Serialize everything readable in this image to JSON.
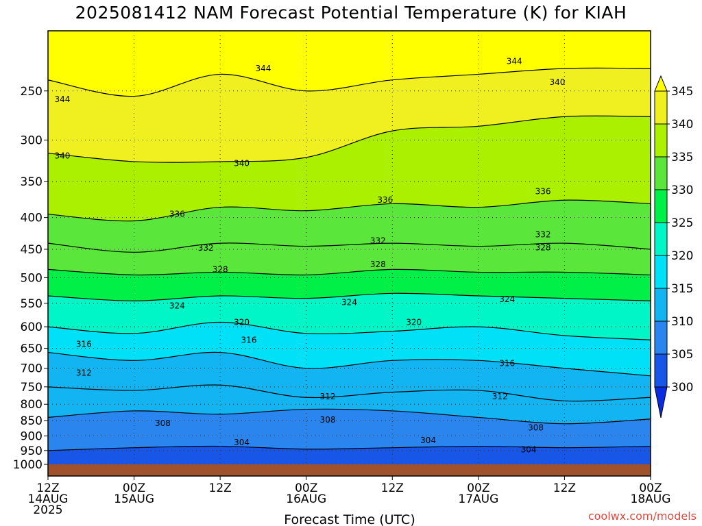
{
  "chart_data": {
    "type": "heatmap",
    "title": "2025081412 NAM Forecast Potential Temperature (K) for KIAH",
    "xlabel": "Forecast Time (UTC)",
    "ylabel": "",
    "credit": "coolwx.com/models",
    "y_scale": "log",
    "y_range": [
      1000,
      200
    ],
    "y_ticks": [
      250,
      300,
      350,
      400,
      450,
      500,
      550,
      600,
      650,
      700,
      750,
      800,
      850,
      900,
      950,
      1000
    ],
    "x_range_hours": [
      0,
      84
    ],
    "x_ticks": [
      {
        "hour": 0,
        "line1": "12Z",
        "line2": "14AUG",
        "line3": "2025"
      },
      {
        "hour": 12,
        "line1": "00Z",
        "line2": "15AUG",
        "line3": ""
      },
      {
        "hour": 24,
        "line1": "12Z",
        "line2": "",
        "line3": ""
      },
      {
        "hour": 36,
        "line1": "00Z",
        "line2": "16AUG",
        "line3": ""
      },
      {
        "hour": 48,
        "line1": "12Z",
        "line2": "",
        "line3": ""
      },
      {
        "hour": 60,
        "line1": "00Z",
        "line2": "17AUG",
        "line3": ""
      },
      {
        "hour": 72,
        "line1": "12Z",
        "line2": "",
        "line3": ""
      },
      {
        "hour": 84,
        "line1": "00Z",
        "line2": "18AUG",
        "line3": ""
      }
    ],
    "colorbar": {
      "levels": [
        300,
        305,
        310,
        315,
        320,
        325,
        330,
        335,
        340,
        345
      ],
      "colors": [
        "#0a2ce0",
        "#1856e8",
        "#2a86ee",
        "#12b4f2",
        "#00e0f6",
        "#00f6c6",
        "#00f048",
        "#5ae63a",
        "#aaf000",
        "#f0f020",
        "#ffff00"
      ]
    },
    "grid": true,
    "hours": [
      0,
      12,
      24,
      36,
      48,
      60,
      72,
      84
    ],
    "isentropes": [
      {
        "theta": 304,
        "p": [
          950,
          940,
          935,
          945,
          940,
          935,
          940,
          935
        ]
      },
      {
        "theta": 308,
        "p": [
          840,
          820,
          830,
          815,
          820,
          840,
          860,
          845
        ]
      },
      {
        "theta": 312,
        "p": [
          750,
          760,
          745,
          780,
          765,
          760,
          790,
          780
        ]
      },
      {
        "theta": 316,
        "p": [
          660,
          680,
          660,
          700,
          680,
          680,
          700,
          720
        ]
      },
      {
        "theta": 320,
        "p": [
          600,
          615,
          590,
          615,
          610,
          600,
          620,
          630
        ]
      },
      {
        "theta": 324,
        "p": [
          535,
          545,
          535,
          540,
          530,
          535,
          540,
          545
        ]
      },
      {
        "theta": 328,
        "p": [
          485,
          495,
          490,
          495,
          485,
          490,
          490,
          495
        ]
      },
      {
        "theta": 332,
        "p": [
          440,
          455,
          440,
          445,
          440,
          445,
          440,
          450
        ]
      },
      {
        "theta": 336,
        "p": [
          395,
          405,
          385,
          390,
          380,
          385,
          375,
          380
        ]
      },
      {
        "theta": 340,
        "p": [
          315,
          325,
          325,
          320,
          290,
          285,
          275,
          275
        ]
      },
      {
        "theta": 344,
        "p": [
          240,
          255,
          235,
          250,
          240,
          235,
          230,
          230
        ]
      }
    ],
    "contour_labels": [
      {
        "text": "344",
        "hour": 2,
        "p": 258
      },
      {
        "text": "344",
        "hour": 30,
        "p": 230
      },
      {
        "text": "344",
        "hour": 65,
        "p": 224
      },
      {
        "text": "340",
        "hour": 2,
        "p": 318
      },
      {
        "text": "340",
        "hour": 27,
        "p": 327
      },
      {
        "text": "340",
        "hour": 71,
        "p": 242
      },
      {
        "text": "336",
        "hour": 18,
        "p": 395
      },
      {
        "text": "336",
        "hour": 47,
        "p": 375
      },
      {
        "text": "336",
        "hour": 69,
        "p": 363
      },
      {
        "text": "332",
        "hour": 22,
        "p": 448
      },
      {
        "text": "332",
        "hour": 46,
        "p": 436
      },
      {
        "text": "332",
        "hour": 69,
        "p": 426
      },
      {
        "text": "328",
        "hour": 24,
        "p": 485
      },
      {
        "text": "328",
        "hour": 46,
        "p": 476
      },
      {
        "text": "328",
        "hour": 69,
        "p": 447
      },
      {
        "text": "324",
        "hour": 18,
        "p": 555
      },
      {
        "text": "324",
        "hour": 42,
        "p": 548
      },
      {
        "text": "324",
        "hour": 64,
        "p": 542
      },
      {
        "text": "320",
        "hour": 27,
        "p": 590
      },
      {
        "text": "320",
        "hour": 51,
        "p": 590
      },
      {
        "text": "316",
        "hour": 5,
        "p": 640
      },
      {
        "text": "316",
        "hour": 28,
        "p": 630
      },
      {
        "text": "316",
        "hour": 64,
        "p": 687
      },
      {
        "text": "312",
        "hour": 5,
        "p": 712
      },
      {
        "text": "312",
        "hour": 39,
        "p": 777
      },
      {
        "text": "312",
        "hour": 63,
        "p": 777
      },
      {
        "text": "308",
        "hour": 16,
        "p": 858
      },
      {
        "text": "308",
        "hour": 39,
        "p": 848
      },
      {
        "text": "308",
        "hour": 68,
        "p": 873
      },
      {
        "text": "304",
        "hour": 27,
        "p": 922
      },
      {
        "text": "304",
        "hour": 53,
        "p": 915
      },
      {
        "text": "304",
        "hour": 67,
        "p": 947
      }
    ]
  }
}
